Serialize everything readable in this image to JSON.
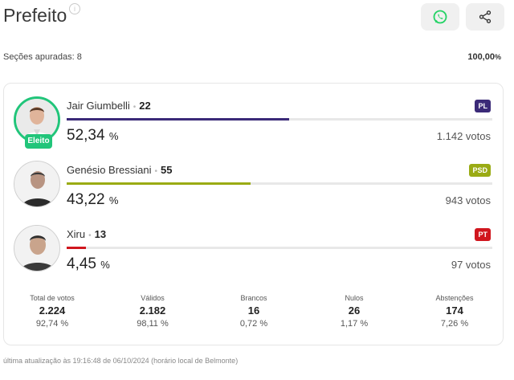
{
  "header": {
    "title": "Prefeito",
    "whatsapp_icon": "whatsapp-icon",
    "share_icon": "share-icon"
  },
  "summary": {
    "sections_label": "Seções apuradas: 8",
    "percent_main": "100,00",
    "percent_unit": "%"
  },
  "candidates": [
    {
      "name": "Jair Giumbelli",
      "number": "22",
      "percent": "52,34",
      "percent_unit": "%",
      "votes": "1.142 votos",
      "party": "PL",
      "party_color": "#3b2a78",
      "bar_color": "#3b2a78",
      "bar_fraction": 0.5234,
      "elected": true,
      "elected_label": "Eleito"
    },
    {
      "name": "Genésio Bressiani",
      "number": "55",
      "percent": "43,22",
      "percent_unit": "%",
      "votes": "943 votos",
      "party": "PSD",
      "party_color": "#9aab14",
      "bar_color": "#9aab14",
      "bar_fraction": 0.4322,
      "elected": false
    },
    {
      "name": "Xiru",
      "number": "13",
      "percent": "4,45",
      "percent_unit": "%",
      "votes": "97 votos",
      "party": "PT",
      "party_color": "#d0161e",
      "bar_color": "#d0161e",
      "bar_fraction": 0.0445,
      "elected": false
    }
  ],
  "stats": [
    {
      "label": "Total de votos",
      "value": "2.224",
      "percent": "92,74 %"
    },
    {
      "label": "Válidos",
      "value": "2.182",
      "percent": "98,11 %"
    },
    {
      "label": "Brancos",
      "value": "16",
      "percent": "0,72 %"
    },
    {
      "label": "Nulos",
      "value": "26",
      "percent": "1,17 %"
    },
    {
      "label": "Abstenções",
      "value": "174",
      "percent": "7,26 %"
    }
  ],
  "footer": {
    "updated": "última atualização às 19:16:48 de 06/10/2024 (horário local de Belmonte)"
  },
  "colors": {
    "elected_green": "#21c57a",
    "whatsapp_green": "#25d366"
  }
}
